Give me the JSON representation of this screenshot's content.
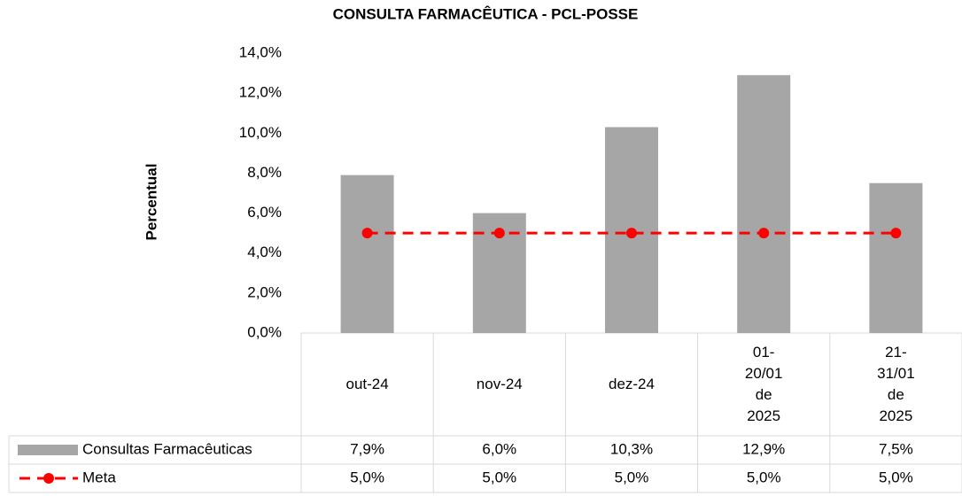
{
  "chart_data": {
    "type": "bar",
    "title": "CONSULTA FARMACÊUTICA - PCL-POSSE",
    "y_label": "Percentual",
    "categories": [
      "out-24",
      "nov-24",
      "dez-24",
      "01-20/01 de 2025",
      "21-31/01 de 2025"
    ],
    "series": [
      {
        "name": "Consultas Farmacêuticas",
        "type": "bar",
        "color": "#a6a6a6",
        "values": [
          7.9,
          6.0,
          10.3,
          12.9,
          7.5
        ],
        "value_labels": [
          "7,9%",
          "6,0%",
          "10,3%",
          "12,9%",
          "7,5%"
        ]
      },
      {
        "name": "Meta",
        "type": "line",
        "color": "#ff0000",
        "values": [
          5.0,
          5.0,
          5.0,
          5.0,
          5.0
        ],
        "value_labels": [
          "5,0%",
          "5,0%",
          "5,0%",
          "5,0%",
          "5,0%"
        ]
      }
    ],
    "ylim": [
      0,
      14
    ],
    "yticks": [
      {
        "value": 0,
        "label": "0,0%"
      },
      {
        "value": 2,
        "label": "2,0%"
      },
      {
        "value": 4,
        "label": "4,0%"
      },
      {
        "value": 6,
        "label": "6,0%"
      },
      {
        "value": 8,
        "label": "8,0%"
      },
      {
        "value": 10,
        "label": "10,0%"
      },
      {
        "value": 12,
        "label": "12,0%"
      },
      {
        "value": 14,
        "label": "14,0%"
      }
    ],
    "grid": false,
    "data_table": true
  }
}
